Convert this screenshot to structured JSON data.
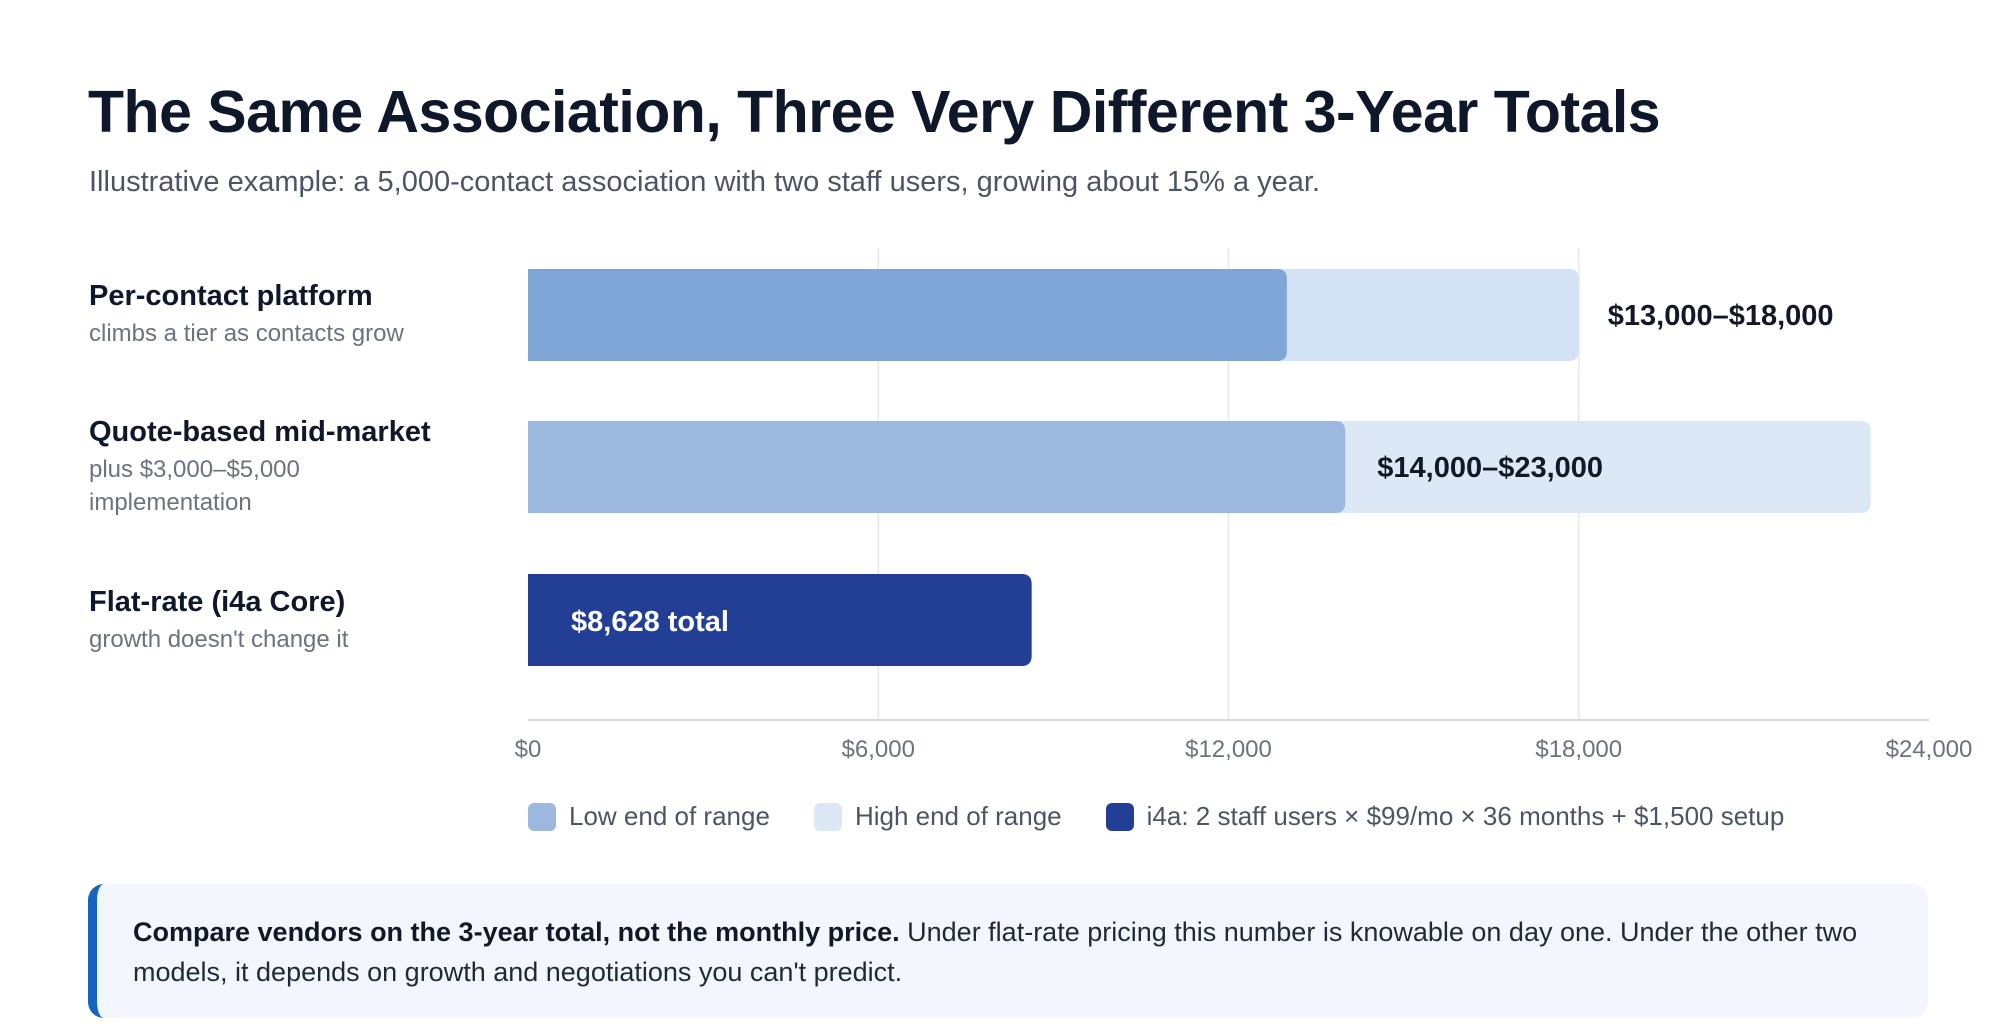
{
  "title": "The Same Association, Three Very Different 3-Year Totals",
  "subtitle": "Illustrative example: a 5,000-contact association with two staff users, growing about 15% a year.",
  "rows": [
    {
      "name": "Per-contact platform",
      "sub": "climbs a tier as contacts grow"
    },
    {
      "name": "Quote-based mid-market",
      "sub": "plus $3,000–$5,000 implementation"
    },
    {
      "name": "Flat-rate (i4a Core)",
      "sub": "growth doesn't change it"
    }
  ],
  "legend": {
    "low": "Low end of range",
    "high": "High end of range",
    "flat": "i4a: 2 staff users × $99/mo × 36 months + $1,500 setup"
  },
  "callout": {
    "bold": "Compare vendors on the 3-year total, not the monthly price.",
    "text": " Under flat-rate pricing this number is knowable on day one. Under the other two models, it depends on growth and negotiations you can't predict."
  },
  "colors": {
    "row1_low": "#80a6d8",
    "row1_high": "#d3e2f4",
    "row2_low": "#9cb8df",
    "row2_high": "#dde8f6",
    "flat": "#233f95",
    "grid": "#ececec",
    "axis": "#d6d6d6"
  },
  "chart_data": {
    "type": "bar",
    "orientation": "horizontal",
    "categories": [
      "Per-contact platform",
      "Quote-based mid-market",
      "Flat-rate (i4a Core)"
    ],
    "series": [
      {
        "name": "Low end of range",
        "values": [
          13000,
          14000,
          null
        ]
      },
      {
        "name": "High end of range",
        "values": [
          18000,
          23000,
          null
        ]
      },
      {
        "name": "i4a: 2 staff users × $99/mo × 36 months + $1,500 setup",
        "values": [
          null,
          null,
          8628
        ]
      }
    ],
    "data_labels": [
      "$13,000–$18,000",
      "$14,000–$23,000",
      "$8,628 total"
    ],
    "x_ticks": [
      0,
      6000,
      12000,
      18000,
      24000
    ],
    "x_tick_labels": [
      "$0",
      "$6,000",
      "$12,000",
      "$18,000",
      "$24,000"
    ],
    "xlim": [
      0,
      24000
    ],
    "grid": true,
    "legend_position": "bottom"
  }
}
